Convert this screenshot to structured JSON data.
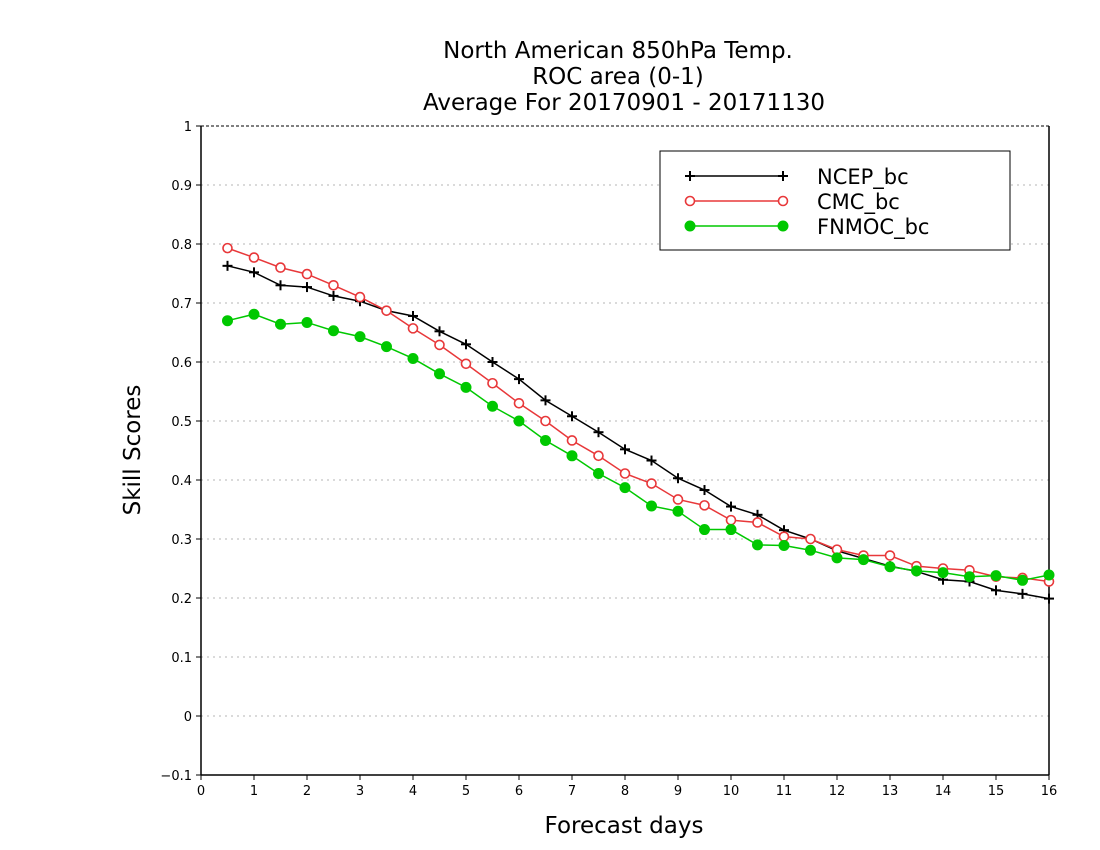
{
  "chart_data": {
    "type": "line",
    "title": [
      "North American 850hPa Temp.",
      "ROC area (0-1)",
      "Average For 20170901 - 20171130"
    ],
    "xlabel": "Forecast days",
    "ylabel": "Skill Scores",
    "xlim": [
      0,
      16
    ],
    "ylim": [
      -0.1,
      1
    ],
    "xticks": [
      "0",
      "1",
      "2",
      "3",
      "4",
      "5",
      "6",
      "7",
      "8",
      "9",
      "10",
      "11",
      "12",
      "13",
      "14",
      "15",
      "16"
    ],
    "yticks": [
      "−0.1",
      "0",
      "0.1",
      "0.2",
      "0.3",
      "0.4",
      "0.5",
      "0.6",
      "0.7",
      "0.8",
      "0.9",
      "1"
    ],
    "grid": true,
    "legend_position": "top-right",
    "x": [
      0.5,
      1,
      1.5,
      2,
      2.5,
      3,
      3.5,
      4,
      4.5,
      5,
      5.5,
      6,
      6.5,
      7,
      7.5,
      8,
      8.5,
      9,
      9.5,
      10,
      10.5,
      11,
      11.5,
      12,
      12.5,
      13,
      13.5,
      14,
      14.5,
      15,
      15.5,
      16
    ],
    "series": [
      {
        "name": "NCEP_bc",
        "color": "#000000",
        "marker": "plus",
        "values": [
          0.763,
          0.752,
          0.73,
          0.727,
          0.712,
          0.703,
          0.687,
          0.678,
          0.652,
          0.63,
          0.6,
          0.571,
          0.535,
          0.508,
          0.481,
          0.452,
          0.433,
          0.403,
          0.383,
          0.355,
          0.341,
          0.315,
          0.3,
          0.28,
          0.267,
          0.254,
          0.245,
          0.231,
          0.228,
          0.213,
          0.207,
          0.199
        ]
      },
      {
        "name": "CMC_bc",
        "color": "#e8383a",
        "marker": "open-circle",
        "values": [
          0.793,
          0.777,
          0.76,
          0.749,
          0.73,
          0.71,
          0.687,
          0.657,
          0.629,
          0.597,
          0.564,
          0.53,
          0.5,
          0.467,
          0.441,
          0.411,
          0.394,
          0.367,
          0.357,
          0.332,
          0.328,
          0.304,
          0.3,
          0.282,
          0.272,
          0.272,
          0.254,
          0.25,
          0.247,
          0.236,
          0.234,
          0.228
        ]
      },
      {
        "name": "FNMOC_bc",
        "color": "#00c800",
        "marker": "filled-circle",
        "values": [
          0.67,
          0.681,
          0.664,
          0.667,
          0.653,
          0.643,
          0.626,
          0.606,
          0.58,
          0.557,
          0.525,
          0.5,
          0.467,
          0.441,
          0.411,
          0.387,
          0.356,
          0.347,
          0.316,
          0.316,
          0.29,
          0.289,
          0.281,
          0.268,
          0.265,
          0.253,
          0.246,
          0.243,
          0.236,
          0.238,
          0.23,
          0.239
        ]
      }
    ]
  }
}
